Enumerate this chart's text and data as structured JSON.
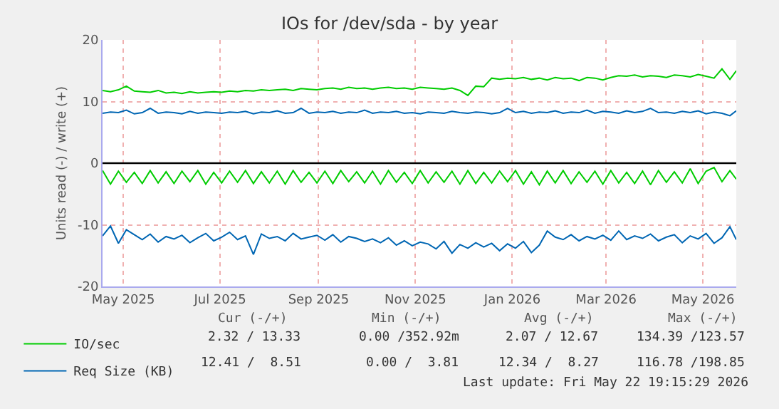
{
  "chart_data": {
    "type": "line",
    "title": "IOs for /dev/sda - by year",
    "ylabel": "Units read (-) / write (+)",
    "x": [
      "2025-04-18",
      "2025-04-23",
      "2025-04-28",
      "2025-05-03",
      "2025-05-08",
      "2025-05-13",
      "2025-05-18",
      "2025-05-23",
      "2025-05-28",
      "2025-06-02",
      "2025-06-07",
      "2025-06-12",
      "2025-06-17",
      "2025-06-22",
      "2025-06-27",
      "2025-07-02",
      "2025-07-07",
      "2025-07-12",
      "2025-07-17",
      "2025-07-22",
      "2025-07-27",
      "2025-08-01",
      "2025-08-06",
      "2025-08-11",
      "2025-08-16",
      "2025-08-21",
      "2025-08-26",
      "2025-08-31",
      "2025-09-05",
      "2025-09-10",
      "2025-09-15",
      "2025-09-20",
      "2025-09-25",
      "2025-09-30",
      "2025-10-05",
      "2025-10-10",
      "2025-10-15",
      "2025-10-20",
      "2025-10-25",
      "2025-10-30",
      "2025-11-04",
      "2025-11-09",
      "2025-11-14",
      "2025-11-19",
      "2025-11-24",
      "2025-11-29",
      "2025-12-04",
      "2025-12-09",
      "2025-12-14",
      "2025-12-19",
      "2025-12-24",
      "2025-12-29",
      "2026-01-03",
      "2026-01-08",
      "2026-01-13",
      "2026-01-18",
      "2026-01-23",
      "2026-01-28",
      "2026-02-02",
      "2026-02-07",
      "2026-02-12",
      "2026-02-17",
      "2026-02-22",
      "2026-02-27",
      "2026-03-04",
      "2026-03-09",
      "2026-03-14",
      "2026-03-19",
      "2026-03-24",
      "2026-03-29",
      "2026-04-03",
      "2026-04-08",
      "2026-04-13",
      "2026-04-18",
      "2026-04-23",
      "2026-04-28",
      "2026-05-03",
      "2026-05-08",
      "2026-05-13",
      "2026-05-18",
      "2026-05-22"
    ],
    "series": [
      {
        "name": "IO/sec",
        "color": "#00cc00",
        "values": [
          11.8,
          11.6,
          11.9,
          12.5,
          11.7,
          11.6,
          11.5,
          11.8,
          11.4,
          11.5,
          11.3,
          11.6,
          11.4,
          11.5,
          11.6,
          11.5,
          11.7,
          11.6,
          11.8,
          11.7,
          11.9,
          11.8,
          11.9,
          12.0,
          11.8,
          12.1,
          12.0,
          11.9,
          12.1,
          12.2,
          12.0,
          12.3,
          12.1,
          12.2,
          12.0,
          12.2,
          12.3,
          12.1,
          12.2,
          12.0,
          12.3,
          12.2,
          12.1,
          12.0,
          12.2,
          11.8,
          11.0,
          12.5,
          12.4,
          13.8,
          13.6,
          13.8,
          13.7,
          13.9,
          13.6,
          13.8,
          13.5,
          13.9,
          13.7,
          13.8,
          13.4,
          13.9,
          13.8,
          13.5,
          13.9,
          14.2,
          14.1,
          14.3,
          14.0,
          14.2,
          14.1,
          13.9,
          14.3,
          14.2,
          14.0,
          14.4,
          14.1,
          13.8,
          15.3,
          13.6,
          15.0
        ]
      },
      {
        "color": "#00cc00",
        "values": [
          -1.2,
          -3.4,
          -1.3,
          -3.1,
          -1.5,
          -3.3,
          -1.2,
          -3.2,
          -1.4,
          -3.3,
          -1.3,
          -3.0,
          -1.2,
          -3.4,
          -1.5,
          -3.2,
          -1.3,
          -3.1,
          -1.2,
          -3.3,
          -1.4,
          -3.2,
          -1.3,
          -3.4,
          -1.2,
          -3.1,
          -1.5,
          -3.2,
          -1.3,
          -3.3,
          -1.2,
          -3.0,
          -1.4,
          -3.2,
          -1.3,
          -3.4,
          -1.2,
          -3.1,
          -1.5,
          -3.3,
          -1.2,
          -3.2,
          -1.4,
          -3.1,
          -1.3,
          -3.4,
          -1.2,
          -3.3,
          -1.5,
          -3.2,
          -1.3,
          -3.0,
          -1.2,
          -3.4,
          -1.4,
          -3.5,
          -1.3,
          -3.2,
          -1.2,
          -3.3,
          -1.4,
          -3.1,
          -1.3,
          -3.4,
          -1.2,
          -3.2,
          -1.5,
          -3.3,
          -1.3,
          -3.5,
          -1.2,
          -3.1,
          -1.4,
          -3.2,
          -0.9,
          -3.3,
          -1.3,
          -0.7,
          -3.0,
          -1.2,
          -2.6
        ]
      },
      {
        "name": "Req Size (KB)",
        "color": "#0066b3",
        "values": [
          8.1,
          8.3,
          8.2,
          8.6,
          8.0,
          8.2,
          8.9,
          8.1,
          8.3,
          8.2,
          8.0,
          8.4,
          8.1,
          8.3,
          8.2,
          8.1,
          8.3,
          8.2,
          8.4,
          8.0,
          8.3,
          8.2,
          8.5,
          8.1,
          8.2,
          8.9,
          8.1,
          8.3,
          8.2,
          8.4,
          8.1,
          8.3,
          8.2,
          8.6,
          8.1,
          8.3,
          8.2,
          8.4,
          8.1,
          8.2,
          8.0,
          8.3,
          8.2,
          8.1,
          8.4,
          8.2,
          8.1,
          8.3,
          8.2,
          8.0,
          8.2,
          8.9,
          8.2,
          8.4,
          8.1,
          8.3,
          8.2,
          8.5,
          8.1,
          8.3,
          8.2,
          8.6,
          8.1,
          8.4,
          8.3,
          8.1,
          8.5,
          8.2,
          8.4,
          8.9,
          8.2,
          8.3,
          8.1,
          8.4,
          8.2,
          8.5,
          8.0,
          8.3,
          8.1,
          7.7,
          8.5
        ]
      },
      {
        "color": "#0066b3",
        "values": [
          -11.8,
          -10.2,
          -13.0,
          -10.8,
          -11.6,
          -12.4,
          -11.5,
          -12.8,
          -11.9,
          -12.3,
          -11.7,
          -12.9,
          -12.1,
          -11.4,
          -12.6,
          -12.0,
          -11.2,
          -12.4,
          -11.8,
          -14.8,
          -11.5,
          -12.2,
          -11.9,
          -12.6,
          -11.4,
          -12.3,
          -12.0,
          -11.7,
          -12.5,
          -11.6,
          -12.8,
          -11.9,
          -12.2,
          -12.7,
          -12.3,
          -12.9,
          -12.1,
          -13.3,
          -12.6,
          -13.4,
          -12.8,
          -13.1,
          -13.9,
          -12.7,
          -14.6,
          -13.2,
          -13.8,
          -12.9,
          -13.6,
          -13.0,
          -14.2,
          -13.1,
          -13.8,
          -12.7,
          -14.5,
          -13.3,
          -11.0,
          -12.0,
          -12.4,
          -11.6,
          -12.6,
          -11.9,
          -12.3,
          -11.7,
          -12.5,
          -11.0,
          -12.4,
          -11.8,
          -12.2,
          -11.5,
          -12.6,
          -12.0,
          -11.6,
          -12.9,
          -11.8,
          -12.3,
          -11.4,
          -13.0,
          -12.1,
          -10.3,
          -12.4
        ]
      }
    ],
    "xlim": [
      "2025-04-18",
      "2026-05-22"
    ],
    "xticks": [
      {
        "value": "2025-05-01",
        "label": "May 2025"
      },
      {
        "value": "2025-07-01",
        "label": "Jul 2025"
      },
      {
        "value": "2025-09-01",
        "label": "Sep 2025"
      },
      {
        "value": "2025-11-01",
        "label": "Nov 2025"
      },
      {
        "value": "2026-01-01",
        "label": "Jan 2026"
      },
      {
        "value": "2026-03-01",
        "label": "Mar 2026"
      },
      {
        "value": "2026-05-01",
        "label": "May 2026"
      }
    ],
    "ylim": [
      -20,
      20
    ],
    "yticks": [
      -20,
      -10,
      0,
      10,
      20
    ],
    "ref_lines": [
      {
        "axis": "y",
        "value": 0,
        "color": "#000000"
      }
    ],
    "grid": true,
    "legend": "bottom",
    "marker": "none",
    "line_style": "solid",
    "annotations": [
      "Cur (-/+)",
      "Min (-/+)",
      "Avg (-/+)",
      "Max (-/+)",
      "2.32 / 13.33",
      "0.00 /352.92m",
      "2.07 / 12.67",
      "134.39 /123.57",
      "12.41 /  8.51",
      "0.00 /  3.81",
      "12.34 /  8.27",
      "116.78 /198.85",
      "Last update: Fri May 22 19:15:29 2026"
    ]
  }
}
